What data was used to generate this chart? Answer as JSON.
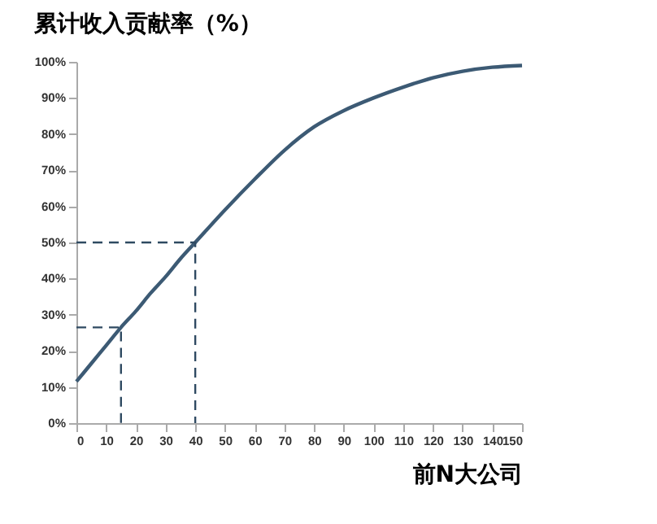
{
  "chart_data": {
    "type": "line",
    "ylabel": "累计收入贡献率（%）",
    "xlabel": "前N大公司",
    "xlim": [
      0,
      150
    ],
    "xticks": [
      0,
      10,
      20,
      30,
      40,
      50,
      60,
      70,
      80,
      90,
      100,
      110,
      120,
      130,
      140,
      150
    ],
    "ylim": [
      0,
      100
    ],
    "yticks": [
      {
        "value": 0,
        "label": "0%"
      },
      {
        "value": 10,
        "label": "10%"
      },
      {
        "value": 20,
        "label": "20%"
      },
      {
        "value": 30,
        "label": "30%"
      },
      {
        "value": 40,
        "label": "40%"
      },
      {
        "value": 50,
        "label": "50%"
      },
      {
        "value": 60,
        "label": "60%"
      },
      {
        "value": 70,
        "label": "70%"
      },
      {
        "value": 80,
        "label": "80%"
      },
      {
        "value": 90,
        "label": "90%"
      },
      {
        "value": 100,
        "label": "100%"
      }
    ],
    "grid": false,
    "marker": "none",
    "series": [
      {
        "color": "#3c5a74",
        "line_style": "solid",
        "x": [
          0,
          5,
          10,
          15,
          20,
          25,
          30,
          35,
          40,
          50,
          60,
          70,
          80,
          90,
          100,
          110,
          120,
          130,
          140,
          150
        ],
        "values": [
          11.5,
          16.5,
          21.5,
          26.5,
          31,
          36,
          40.5,
          45.5,
          50,
          59,
          67.5,
          75.5,
          82,
          86.5,
          90,
          93,
          95.6,
          97.4,
          98.5,
          99
        ]
      },
      {
        "color": "#2f4a62",
        "line_style": "dashed",
        "x": [
          0,
          15,
          15
        ],
        "values": [
          26.5,
          26.5,
          0
        ]
      },
      {
        "color": "#2f4a62",
        "line_style": "dashed",
        "x": [
          0,
          40,
          40
        ],
        "values": [
          50,
          50,
          0
        ]
      }
    ]
  }
}
